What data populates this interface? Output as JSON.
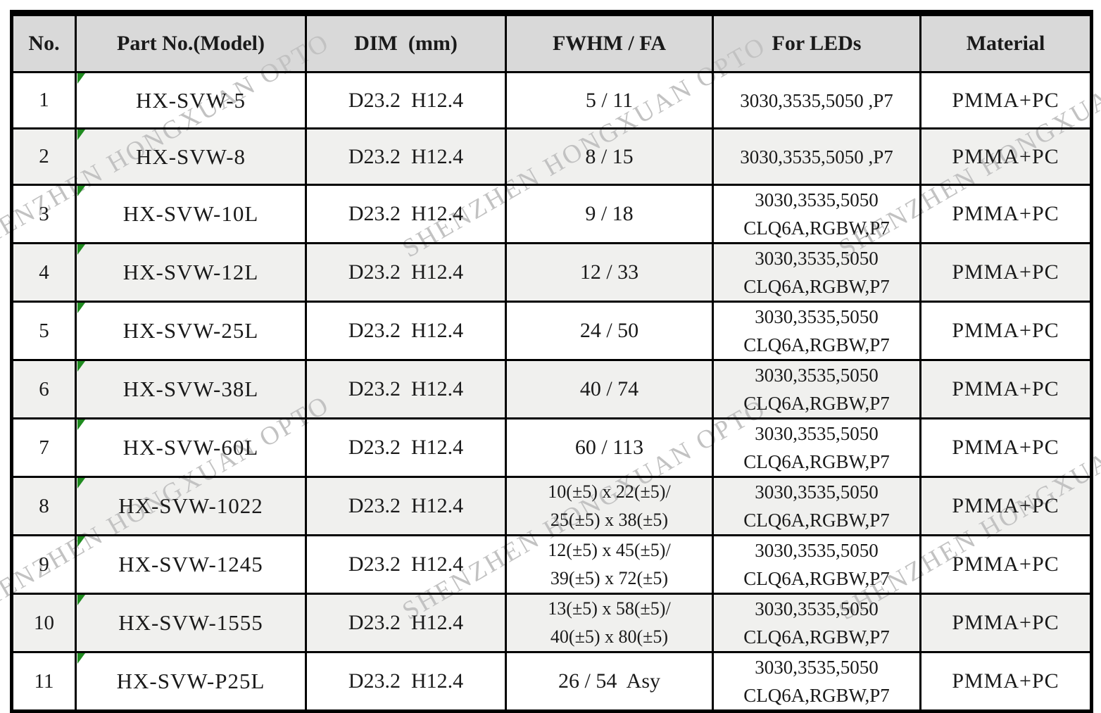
{
  "watermark": {
    "text": "SHENZHEN HONGXUAN OPTO",
    "color": "#c2c2c2"
  },
  "colors": {
    "header_bg": "#d9d9d9",
    "alt_row_bg": "#f0f0ee",
    "border": "#000000",
    "flag_green": "#1f8b1f",
    "text": "#1a1a1a"
  },
  "table": {
    "headers": {
      "no": "No.",
      "part": "Part No.(Model)",
      "dim": "DIM  (mm)",
      "fwhm": "FWHM / FA",
      "leds": "For LEDs",
      "material": "Material"
    },
    "rows": [
      {
        "no": "1",
        "part": "HX-SVW-5",
        "dim": "D23.2  H12.4",
        "fwhm": [
          "5 / 11"
        ],
        "leds": [
          "3030,3535,5050 ,P7"
        ],
        "material": "PMMA+PC"
      },
      {
        "no": "2",
        "part": "HX-SVW-8",
        "dim": "D23.2  H12.4",
        "fwhm": [
          "8 / 15"
        ],
        "leds": [
          "3030,3535,5050 ,P7"
        ],
        "material": "PMMA+PC"
      },
      {
        "no": "3",
        "part": "HX-SVW-10L",
        "dim": "D23.2  H12.4",
        "fwhm": [
          "9 / 18"
        ],
        "leds": [
          "3030,3535,5050",
          "CLQ6A,RGBW,P7"
        ],
        "material": "PMMA+PC"
      },
      {
        "no": "4",
        "part": "HX-SVW-12L",
        "dim": "D23.2  H12.4",
        "fwhm": [
          "12 / 33"
        ],
        "leds": [
          "3030,3535,5050",
          "CLQ6A,RGBW,P7"
        ],
        "material": "PMMA+PC"
      },
      {
        "no": "5",
        "part": "HX-SVW-25L",
        "dim": "D23.2  H12.4",
        "fwhm": [
          "24 / 50"
        ],
        "leds": [
          "3030,3535,5050",
          "CLQ6A,RGBW,P7"
        ],
        "material": "PMMA+PC"
      },
      {
        "no": "6",
        "part": "HX-SVW-38L",
        "dim": "D23.2  H12.4",
        "fwhm": [
          "40 / 74"
        ],
        "leds": [
          "3030,3535,5050",
          "CLQ6A,RGBW,P7"
        ],
        "material": "PMMA+PC"
      },
      {
        "no": "7",
        "part": "HX-SVW-60L",
        "dim": "D23.2  H12.4",
        "fwhm": [
          "60 / 113"
        ],
        "leds": [
          "3030,3535,5050",
          "CLQ6A,RGBW,P7"
        ],
        "material": "PMMA+PC"
      },
      {
        "no": "8",
        "part": "HX-SVW-1022",
        "dim": "D23.2  H12.4",
        "fwhm": [
          "10(±5) x 22(±5)/",
          "25(±5) x 38(±5)"
        ],
        "leds": [
          "3030,3535,5050",
          "CLQ6A,RGBW,P7"
        ],
        "material": "PMMA+PC"
      },
      {
        "no": "9",
        "part": "HX-SVW-1245",
        "dim": "D23.2  H12.4",
        "fwhm": [
          "12(±5) x 45(±5)/",
          "39(±5) x 72(±5)"
        ],
        "leds": [
          "3030,3535,5050",
          "CLQ6A,RGBW,P7"
        ],
        "material": "PMMA+PC"
      },
      {
        "no": "10",
        "part": "HX-SVW-1555",
        "dim": "D23.2  H12.4",
        "fwhm": [
          "13(±5) x 58(±5)/",
          "40(±5) x 80(±5)"
        ],
        "leds": [
          "3030,3535,5050",
          "CLQ6A,RGBW,P7"
        ],
        "material": "PMMA+PC"
      },
      {
        "no": "11",
        "part": "HX-SVW-P25L",
        "dim": "D23.2  H12.4",
        "fwhm": [
          "26 / 54  Asy"
        ],
        "leds": [
          "3030,3535,5050",
          "CLQ6A,RGBW,P7"
        ],
        "material": "PMMA+PC"
      }
    ]
  }
}
